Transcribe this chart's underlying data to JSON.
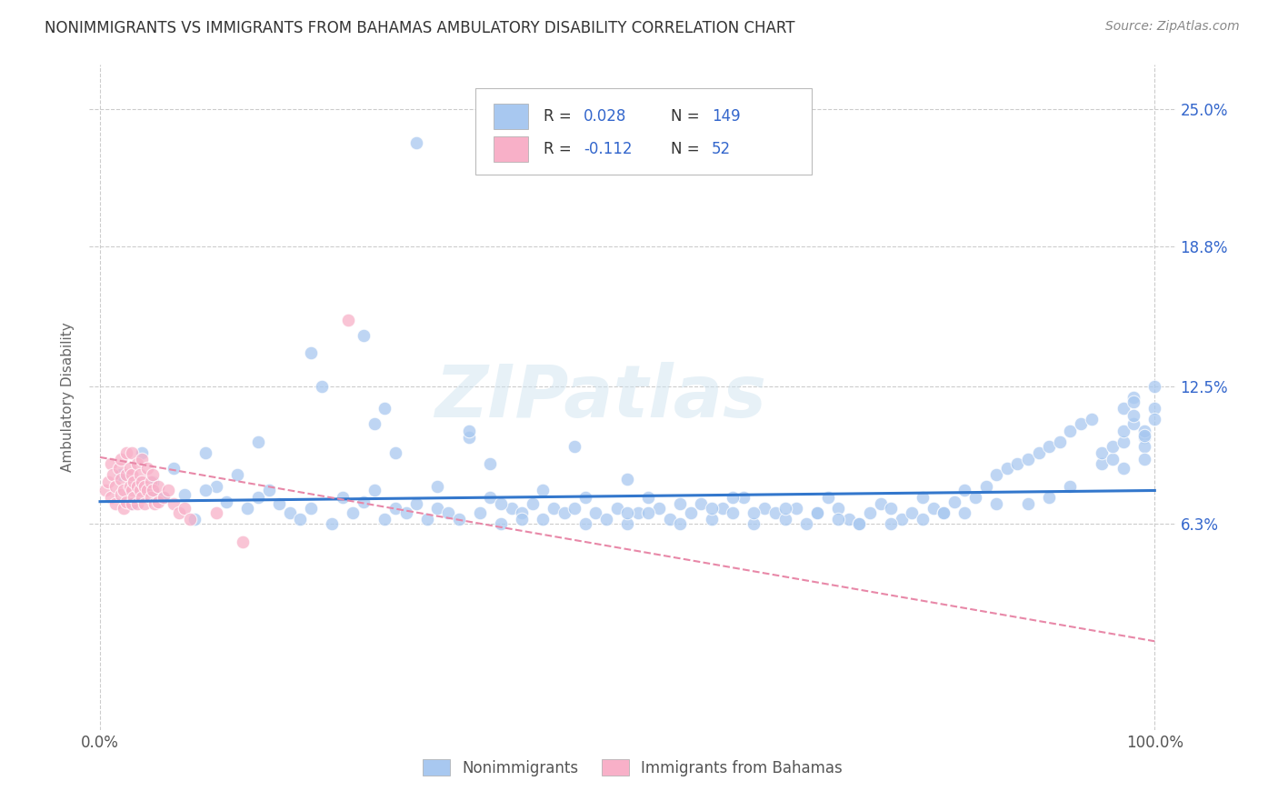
{
  "title": "NONIMMIGRANTS VS IMMIGRANTS FROM BAHAMAS AMBULATORY DISABILITY CORRELATION CHART",
  "source": "Source: ZipAtlas.com",
  "watermark": "ZIPatlas",
  "ylabel": "Ambulatory Disability",
  "xlim": [
    -0.01,
    1.02
  ],
  "ylim": [
    -0.03,
    0.27
  ],
  "xticks": [
    0.0,
    1.0
  ],
  "xticklabels": [
    "0.0%",
    "100.0%"
  ],
  "ytick_positions": [
    0.063,
    0.125,
    0.188,
    0.25
  ],
  "ytick_labels": [
    "6.3%",
    "12.5%",
    "18.8%",
    "25.0%"
  ],
  "nonimmigrant_color": "#a8c8f0",
  "immigrant_color": "#f8b0c8",
  "nonimmigrant_R": 0.028,
  "nonimmigrant_N": 149,
  "immigrant_R": -0.112,
  "immigrant_N": 52,
  "trend_nonimmigrant_color": "#3377cc",
  "trend_immigrant_color": "#e888a8",
  "background_color": "#ffffff",
  "grid_color": "#cccccc",
  "title_color": "#333333",
  "axis_label_color": "#666666",
  "legend_text_color": "#3366cc",
  "nonimmigrant_scatter_x": [
    0.02,
    0.03,
    0.04,
    0.05,
    0.05,
    0.06,
    0.07,
    0.08,
    0.09,
    0.1,
    0.11,
    0.12,
    0.13,
    0.14,
    0.15,
    0.16,
    0.17,
    0.18,
    0.19,
    0.2,
    0.21,
    0.22,
    0.23,
    0.24,
    0.25,
    0.26,
    0.27,
    0.28,
    0.29,
    0.3,
    0.31,
    0.32,
    0.33,
    0.34,
    0.35,
    0.36,
    0.37,
    0.38,
    0.39,
    0.4,
    0.41,
    0.42,
    0.43,
    0.44,
    0.45,
    0.46,
    0.47,
    0.48,
    0.49,
    0.5,
    0.51,
    0.52,
    0.53,
    0.54,
    0.55,
    0.56,
    0.57,
    0.58,
    0.59,
    0.6,
    0.61,
    0.62,
    0.63,
    0.64,
    0.65,
    0.66,
    0.67,
    0.68,
    0.69,
    0.7,
    0.71,
    0.72,
    0.73,
    0.74,
    0.75,
    0.76,
    0.77,
    0.78,
    0.79,
    0.8,
    0.81,
    0.82,
    0.83,
    0.84,
    0.85,
    0.86,
    0.87,
    0.88,
    0.89,
    0.9,
    0.91,
    0.92,
    0.93,
    0.94,
    0.95,
    0.95,
    0.96,
    0.96,
    0.97,
    0.97,
    0.97,
    0.97,
    0.98,
    0.98,
    0.98,
    0.98,
    0.99,
    0.99,
    0.99,
    0.99,
    0.99,
    1.0,
    1.0,
    1.0,
    0.26,
    0.27,
    0.28,
    0.32,
    0.35,
    0.37,
    0.42,
    0.45,
    0.5,
    0.55,
    0.6,
    0.65,
    0.68,
    0.72,
    0.78,
    0.82,
    0.88,
    0.92,
    0.5,
    0.38,
    0.3,
    0.25,
    0.2,
    0.15,
    0.1,
    0.4,
    0.46,
    0.52,
    0.58,
    0.62,
    0.7,
    0.75,
    0.8,
    0.85,
    0.9
  ],
  "nonimmigrant_scatter_y": [
    0.085,
    0.072,
    0.095,
    0.078,
    0.082,
    0.075,
    0.088,
    0.076,
    0.065,
    0.095,
    0.08,
    0.073,
    0.085,
    0.07,
    0.075,
    0.078,
    0.072,
    0.068,
    0.065,
    0.07,
    0.125,
    0.063,
    0.075,
    0.068,
    0.073,
    0.078,
    0.065,
    0.07,
    0.068,
    0.072,
    0.065,
    0.07,
    0.068,
    0.065,
    0.102,
    0.068,
    0.075,
    0.063,
    0.07,
    0.068,
    0.072,
    0.065,
    0.07,
    0.068,
    0.098,
    0.075,
    0.068,
    0.065,
    0.07,
    0.063,
    0.068,
    0.075,
    0.07,
    0.065,
    0.063,
    0.068,
    0.072,
    0.065,
    0.07,
    0.068,
    0.075,
    0.063,
    0.07,
    0.068,
    0.065,
    0.07,
    0.063,
    0.068,
    0.075,
    0.07,
    0.065,
    0.063,
    0.068,
    0.072,
    0.07,
    0.065,
    0.068,
    0.075,
    0.07,
    0.068,
    0.073,
    0.078,
    0.075,
    0.08,
    0.085,
    0.088,
    0.09,
    0.092,
    0.095,
    0.098,
    0.1,
    0.105,
    0.108,
    0.11,
    0.09,
    0.095,
    0.092,
    0.098,
    0.088,
    0.1,
    0.105,
    0.115,
    0.12,
    0.118,
    0.108,
    0.112,
    0.102,
    0.105,
    0.098,
    0.103,
    0.092,
    0.125,
    0.115,
    0.11,
    0.108,
    0.115,
    0.095,
    0.08,
    0.105,
    0.09,
    0.078,
    0.07,
    0.068,
    0.072,
    0.075,
    0.07,
    0.068,
    0.063,
    0.065,
    0.068,
    0.072,
    0.08,
    0.083,
    0.072,
    0.235,
    0.148,
    0.14,
    0.1,
    0.078,
    0.065,
    0.063,
    0.068,
    0.07,
    0.068,
    0.065,
    0.063,
    0.068,
    0.072,
    0.075
  ],
  "immigrant_scatter_x": [
    0.005,
    0.008,
    0.01,
    0.01,
    0.012,
    0.015,
    0.015,
    0.018,
    0.02,
    0.02,
    0.02,
    0.022,
    0.022,
    0.025,
    0.025,
    0.025,
    0.028,
    0.028,
    0.03,
    0.03,
    0.03,
    0.03,
    0.032,
    0.032,
    0.035,
    0.035,
    0.035,
    0.038,
    0.038,
    0.04,
    0.04,
    0.04,
    0.042,
    0.042,
    0.045,
    0.045,
    0.048,
    0.048,
    0.05,
    0.05,
    0.052,
    0.055,
    0.055,
    0.06,
    0.065,
    0.07,
    0.075,
    0.08,
    0.085,
    0.11,
    0.135,
    0.235
  ],
  "immigrant_scatter_y": [
    0.078,
    0.082,
    0.09,
    0.075,
    0.085,
    0.08,
    0.072,
    0.088,
    0.092,
    0.076,
    0.083,
    0.078,
    0.07,
    0.095,
    0.085,
    0.073,
    0.088,
    0.08,
    0.095,
    0.085,
    0.078,
    0.072,
    0.082,
    0.075,
    0.09,
    0.08,
    0.072,
    0.085,
    0.078,
    0.092,
    0.082,
    0.075,
    0.08,
    0.072,
    0.088,
    0.078,
    0.082,
    0.075,
    0.085,
    0.078,
    0.072,
    0.08,
    0.073,
    0.075,
    0.078,
    0.072,
    0.068,
    0.07,
    0.065,
    0.068,
    0.055,
    0.155
  ],
  "nonimm_trend_x": [
    0.0,
    1.0
  ],
  "nonimm_trend_y": [
    0.073,
    0.078
  ],
  "imm_trend_x": [
    0.0,
    1.0
  ],
  "imm_trend_y": [
    0.093,
    0.01
  ]
}
